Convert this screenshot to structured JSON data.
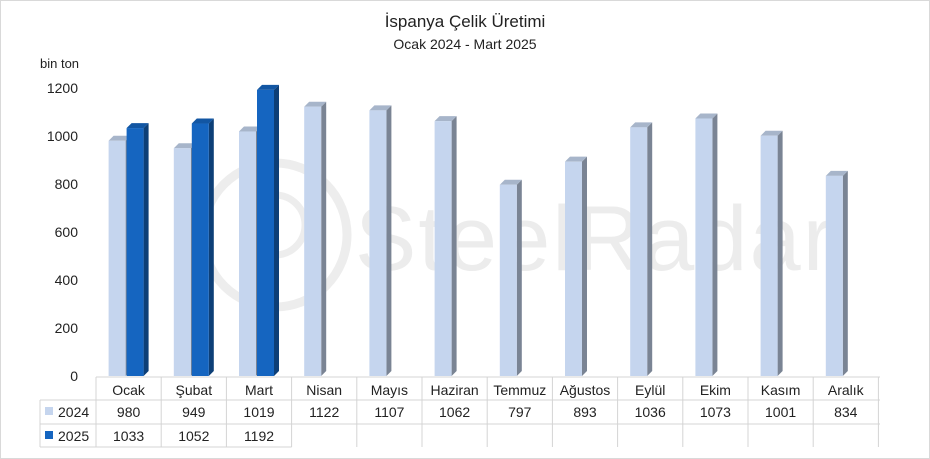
{
  "chart_data": {
    "type": "bar",
    "title": "İspanya Çelik Üretimi",
    "subtitle": "Ocak 2024 - Mart 2025",
    "ylabel": "bin ton",
    "ylim": [
      0,
      1200
    ],
    "yticks": [
      0,
      200,
      400,
      600,
      800,
      1000,
      1200
    ],
    "categories": [
      "Ocak",
      "Şubat",
      "Mart",
      "Nisan",
      "Mayıs",
      "Haziran",
      "Temmuz",
      "Ağustos",
      "Eylül",
      "Ekim",
      "Kasım",
      "Aralık"
    ],
    "series": [
      {
        "name": "2024",
        "color": "#c5d5ee",
        "values": [
          980,
          949,
          1019,
          1122,
          1107,
          1062,
          797,
          893,
          1036,
          1073,
          1001,
          834
        ]
      },
      {
        "name": "2025",
        "color": "#1565c0",
        "values": [
          1033,
          1052,
          1192,
          null,
          null,
          null,
          null,
          null,
          null,
          null,
          null,
          null
        ]
      }
    ],
    "watermark": "SteelRadar",
    "legend": "data-table",
    "grid": false
  }
}
